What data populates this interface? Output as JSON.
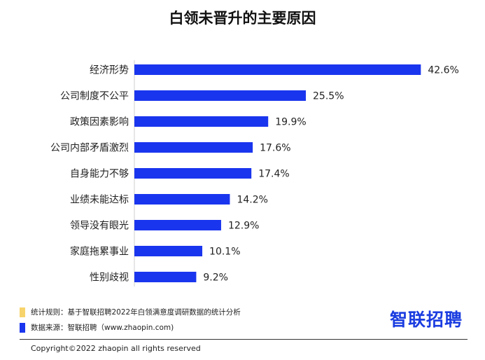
{
  "chart_data": {
    "type": "bar",
    "orientation": "horizontal",
    "title": "白领未晋升的主要原因",
    "categories": [
      "经济形势",
      "公司制度不公平",
      "政策因素影响",
      "公司内部矛盾激烈",
      "自身能力不够",
      "业绩未能达标",
      "领导没有眼光",
      "家庭拖累事业",
      "性别歧视"
    ],
    "values": [
      42.6,
      25.5,
      19.9,
      17.6,
      17.4,
      14.2,
      12.9,
      10.1,
      9.2
    ],
    "value_labels": [
      "42.6%",
      "25.5%",
      "19.9%",
      "17.6%",
      "17.4%",
      "14.2%",
      "12.9%",
      "10.1%",
      "9.2%"
    ],
    "unit": "%",
    "xlim": [
      0,
      46
    ],
    "bar_color": "#1a35ee",
    "grid": false,
    "legend": "none"
  },
  "notes": {
    "rule": {
      "label": "统计规则：基于智联招聘2022年白领满意度调研数据的统计分析",
      "color": "#f7d36b"
    },
    "source": {
      "label": "数据来源：智联招聘（www.zhaopin.com)",
      "color": "#1a35ee"
    }
  },
  "logo_text": "智联招聘",
  "copyright": "Copyright©2022 zhaopin all rights reserved"
}
